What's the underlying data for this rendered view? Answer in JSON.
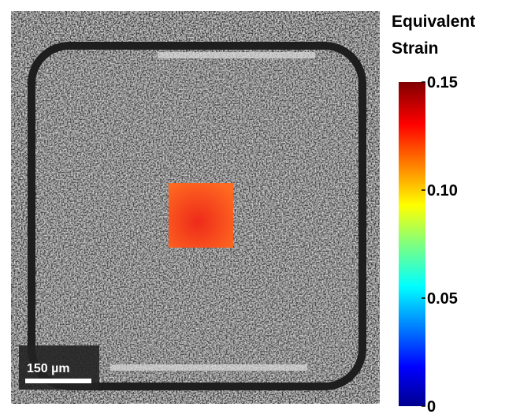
{
  "colorbar": {
    "title_lines": [
      "Equivalent",
      "Strain"
    ],
    "lim": [
      0,
      0.15
    ],
    "ticks": [
      0,
      0.05,
      {
        "value": 0.1,
        "label": "0.10"
      },
      0.15
    ]
  },
  "scale_bar": {
    "label": "150 µm"
  }
}
